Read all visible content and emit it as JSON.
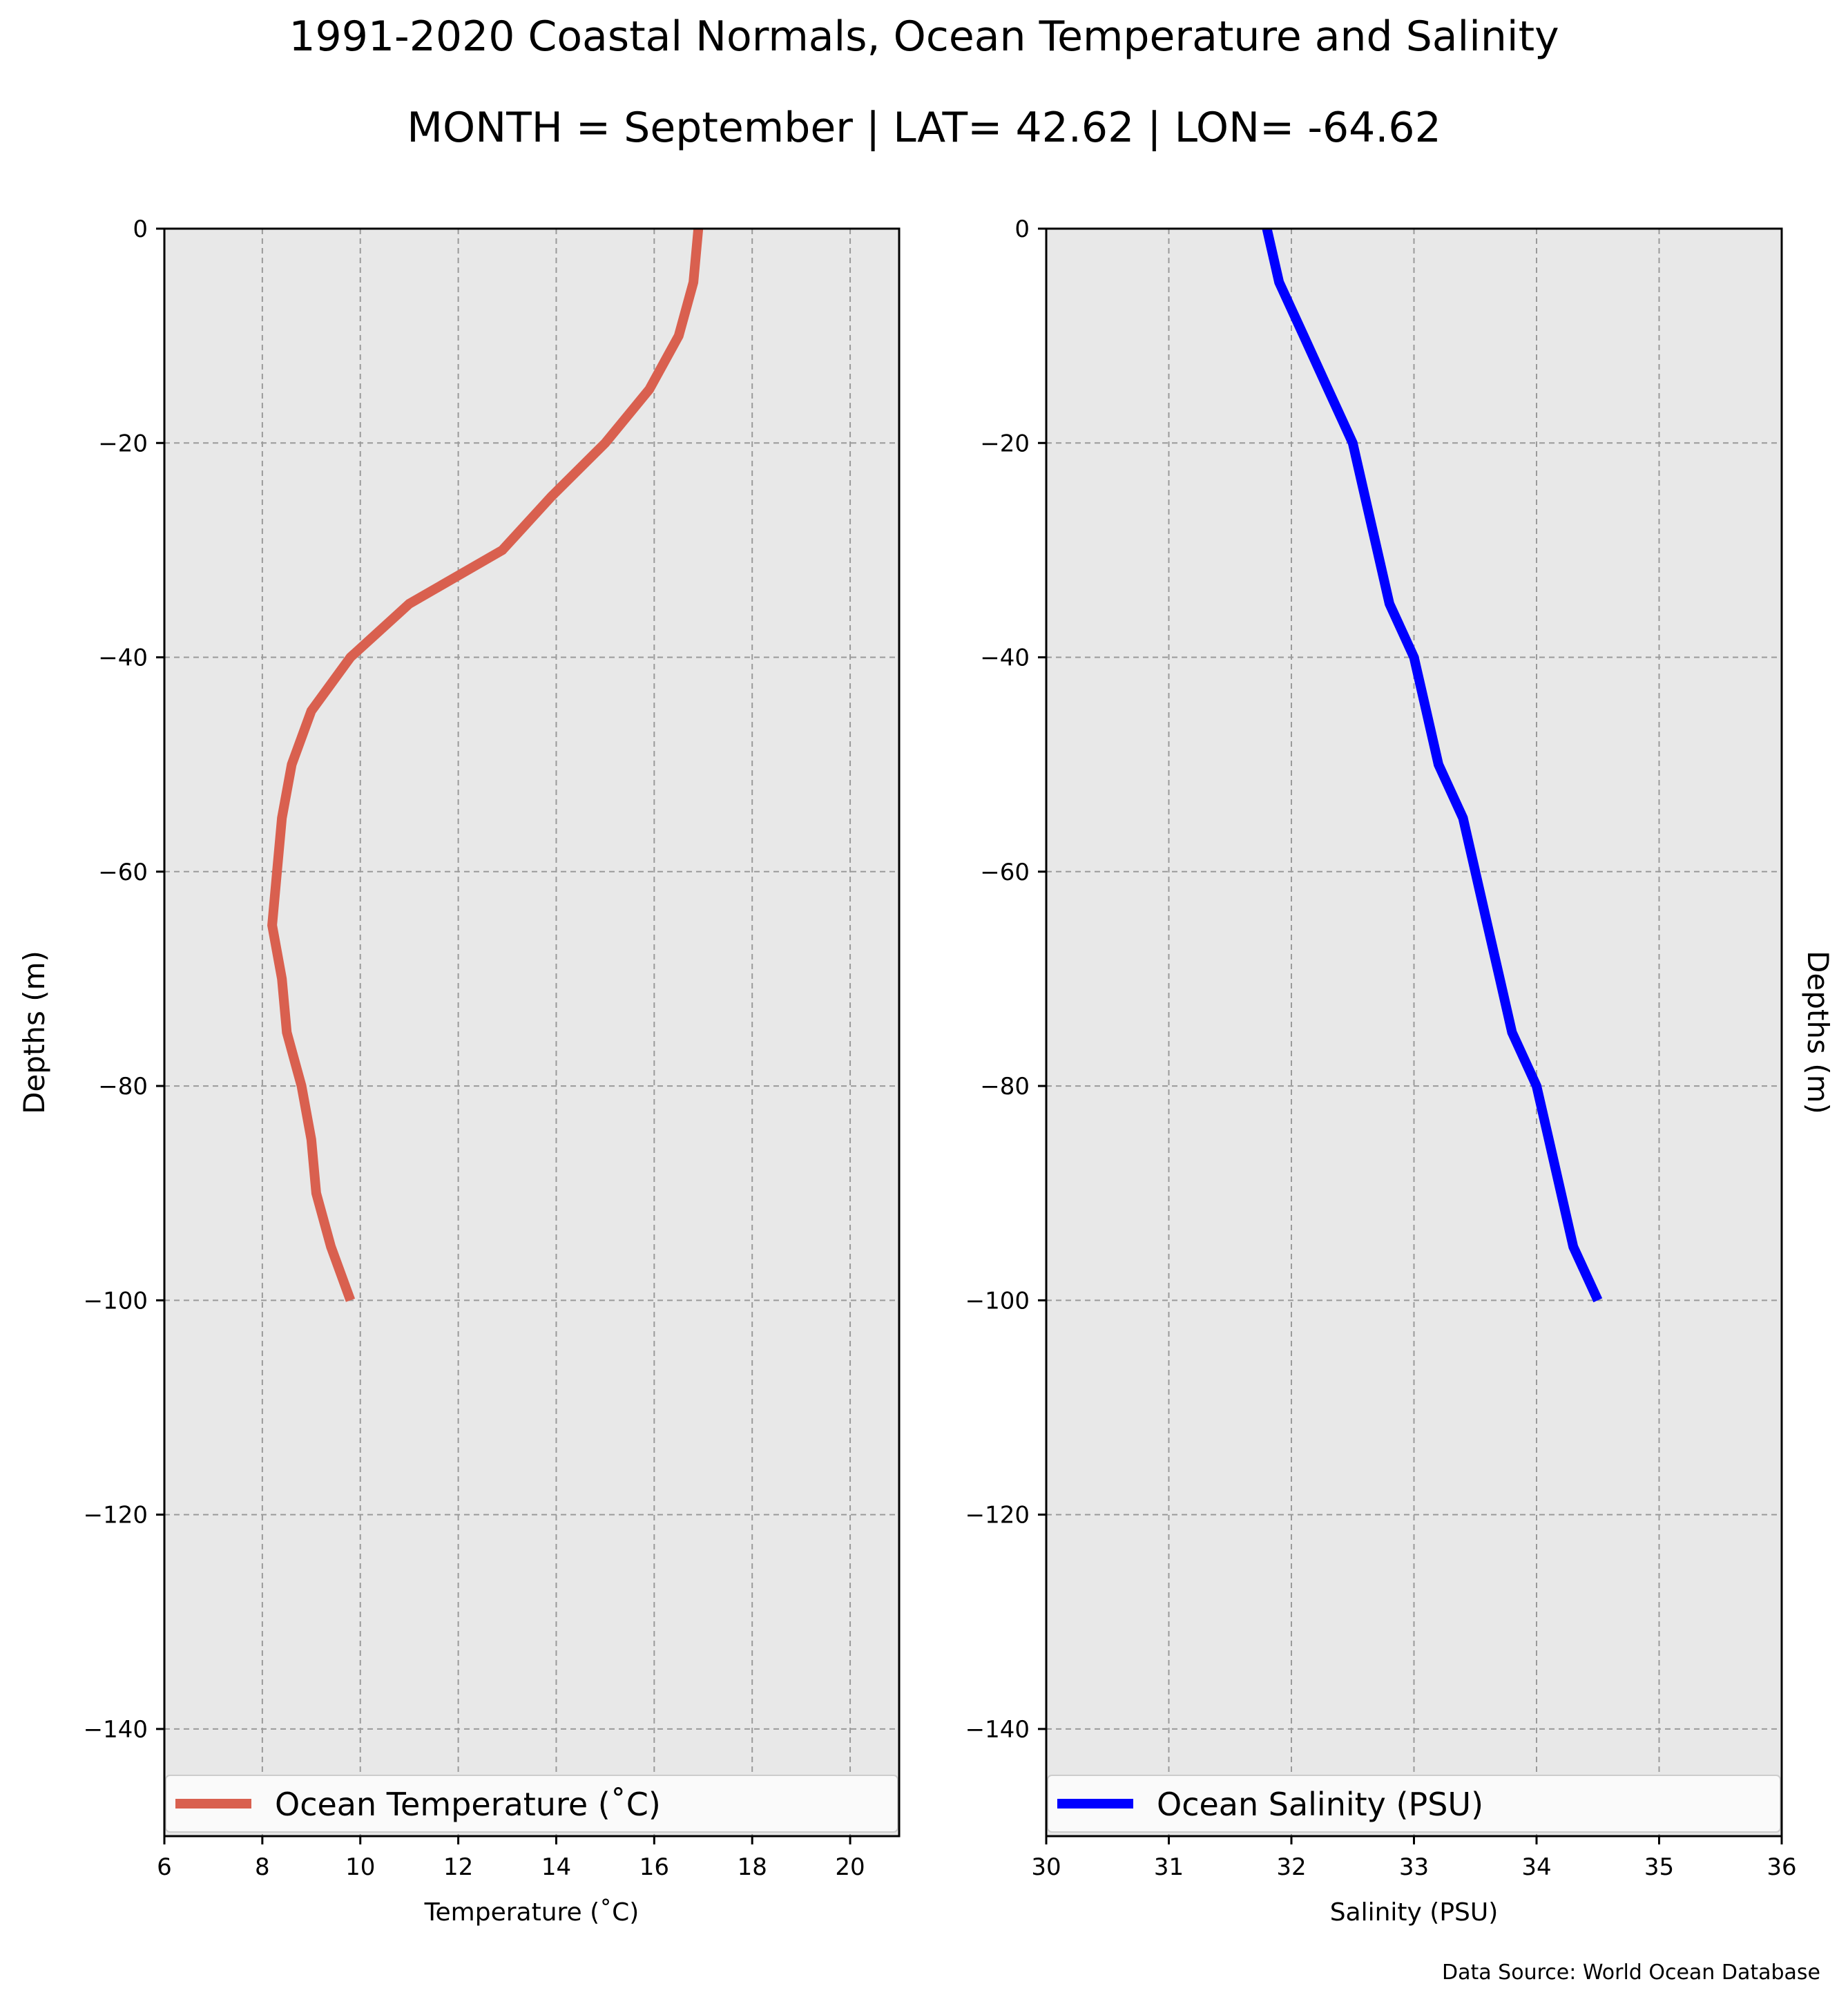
{
  "title": "1991-2020 Coastal Normals, Ocean Temperature and Salinity",
  "subtitle": "MONTH = September | LAT= 42.62 | LON= -64.62",
  "source": "Data Source: World Ocean Database",
  "chart_data": [
    {
      "type": "line",
      "xlabel": "Temperature (˚C)",
      "ylabel": "Depths (m)",
      "xlim": [
        6,
        21
      ],
      "ylim": [
        -150,
        0
      ],
      "xticks": [
        6,
        8,
        10,
        12,
        14,
        16,
        18,
        20
      ],
      "yticks": [
        0,
        -20,
        -40,
        -60,
        -80,
        -100,
        -120,
        -140
      ],
      "grid": true,
      "legend_position": "bottom",
      "background": "#e8e8e8",
      "series": [
        {
          "name": "Ocean Temperature (˚C)",
          "color": "#d9604f",
          "points": [
            [
              16.9,
              0
            ],
            [
              16.8,
              -5
            ],
            [
              16.5,
              -10
            ],
            [
              15.9,
              -15
            ],
            [
              15.0,
              -20
            ],
            [
              13.9,
              -25
            ],
            [
              12.9,
              -30
            ],
            [
              11.0,
              -35
            ],
            [
              9.8,
              -40
            ],
            [
              9.0,
              -45
            ],
            [
              8.6,
              -50
            ],
            [
              8.4,
              -55
            ],
            [
              8.3,
              -60
            ],
            [
              8.2,
              -65
            ],
            [
              8.4,
              -70
            ],
            [
              8.5,
              -75
            ],
            [
              8.8,
              -80
            ],
            [
              9.0,
              -85
            ],
            [
              9.1,
              -90
            ],
            [
              9.4,
              -95
            ],
            [
              9.8,
              -100
            ]
          ]
        }
      ]
    },
    {
      "type": "line",
      "xlabel": "Salinity (PSU)",
      "ylabel": "Depths (m)",
      "xlim": [
        30,
        36
      ],
      "ylim": [
        -150,
        0
      ],
      "xticks": [
        30,
        31,
        32,
        33,
        34,
        35,
        36
      ],
      "yticks": [
        0,
        -20,
        -40,
        -60,
        -80,
        -100,
        -120,
        -140
      ],
      "grid": true,
      "legend_position": "bottom",
      "background": "#e8e8e8",
      "series": [
        {
          "name": "Ocean Salinity (PSU)",
          "color": "#0000ff",
          "points": [
            [
              31.8,
              0
            ],
            [
              31.9,
              -5
            ],
            [
              32.1,
              -10
            ],
            [
              32.3,
              -15
            ],
            [
              32.5,
              -20
            ],
            [
              32.6,
              -25
            ],
            [
              32.7,
              -30
            ],
            [
              32.8,
              -35
            ],
            [
              33.0,
              -40
            ],
            [
              33.1,
              -45
            ],
            [
              33.2,
              -50
            ],
            [
              33.4,
              -55
            ],
            [
              33.5,
              -60
            ],
            [
              33.6,
              -65
            ],
            [
              33.7,
              -70
            ],
            [
              33.8,
              -75
            ],
            [
              34.0,
              -80
            ],
            [
              34.1,
              -85
            ],
            [
              34.2,
              -90
            ],
            [
              34.3,
              -95
            ],
            [
              34.5,
              -100
            ]
          ]
        }
      ]
    }
  ]
}
